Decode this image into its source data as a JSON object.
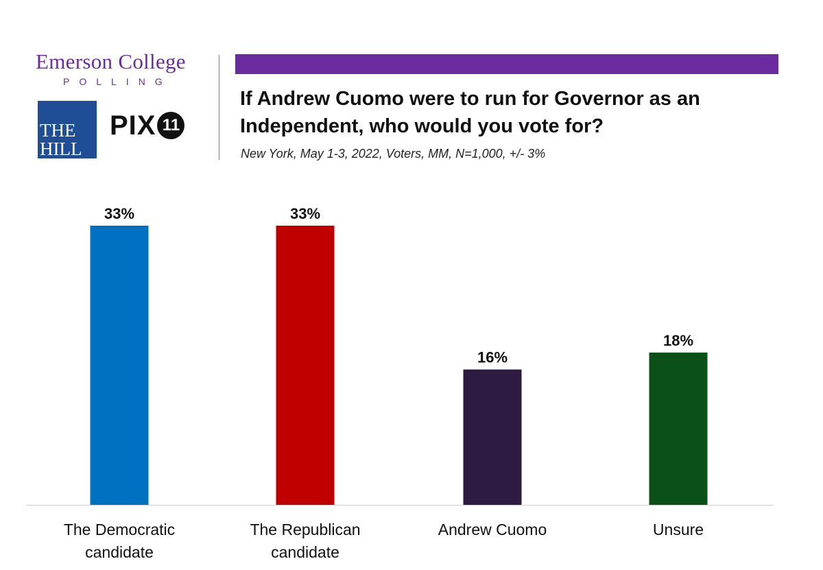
{
  "brand": {
    "emerson": "Emerson College",
    "polling": "POLLING",
    "hill_line1": "THE",
    "hill_line2": "HILL",
    "pix_text": "PIX",
    "pix_number": "11"
  },
  "colors": {
    "brand_purple": "#6a2b9f",
    "hill_blue": "#1f4e96"
  },
  "chart_data": {
    "type": "bar",
    "title": "If Andrew Cuomo were to run for Governor as an Independent, who would you vote for?",
    "subtitle": "New York, May 1-3, 2022, Voters, MM, N=1,000, +/- 3%",
    "categories": [
      [
        "The Democratic",
        "candidate"
      ],
      [
        "The Republican",
        "candidate"
      ],
      [
        "Andrew Cuomo"
      ],
      [
        "Unsure"
      ]
    ],
    "values": [
      33,
      33,
      16,
      18
    ],
    "value_labels": [
      "33%",
      "33%",
      "16%",
      "18%"
    ],
    "colors": [
      "#0070c0",
      "#c00000",
      "#2e1b42",
      "#0b5117"
    ],
    "ylim": [
      0,
      33
    ],
    "grid": false
  }
}
